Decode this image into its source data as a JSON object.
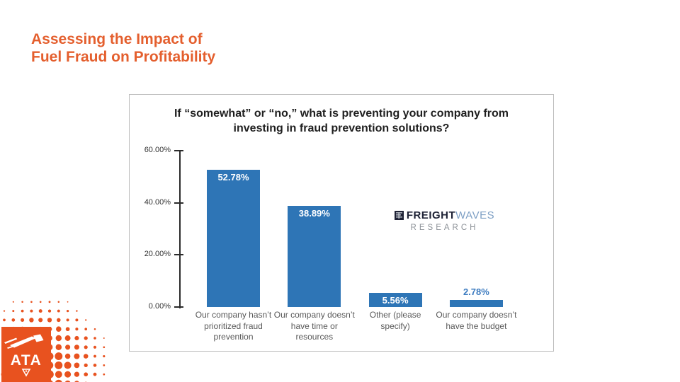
{
  "slide": {
    "title": "Assessing the Impact of\nFuel Fraud on Profitability",
    "title_color": "#E45F2E"
  },
  "chart_data": {
    "type": "bar",
    "title": "If “somewhat” or “no,” what is preventing your company from\ninvesting in fraud prevention solutions?",
    "categories": [
      "Our company hasn’t\nprioritized fraud\nprevention",
      "Our company doesn’t\nhave time or\nresources",
      "Other (please\nspecify)",
      "Our company doesn’t\nhave the budget"
    ],
    "values": [
      52.78,
      38.89,
      5.56,
      2.78
    ],
    "value_labels": [
      "52.78%",
      "38.89%",
      "5.56%",
      "2.78%"
    ],
    "y_ticks": [
      {
        "label": "60.00%",
        "value": 60
      },
      {
        "label": "40.00%",
        "value": 40
      },
      {
        "label": "20.00%",
        "value": 20
      },
      {
        "label": "0.00%",
        "value": 0
      }
    ],
    "ylim": [
      0,
      60
    ],
    "xlabel": "",
    "ylabel": "",
    "grid": false,
    "legend": "none",
    "bar_color": "#2E75B6",
    "value_label_inside_color": "#FFFFFF",
    "value_label_outside_color": "#3D7CC0"
  },
  "freightwaves_logo": {
    "freight": "FREIGHT",
    "waves": "WAVES",
    "research": "RESEARCH",
    "freight_color": "#1E2235",
    "waves_color": "#7D9FC4",
    "research_color": "#8E9399"
  },
  "ata_logo": {
    "text": "ATA",
    "color": "#E8521F"
  }
}
